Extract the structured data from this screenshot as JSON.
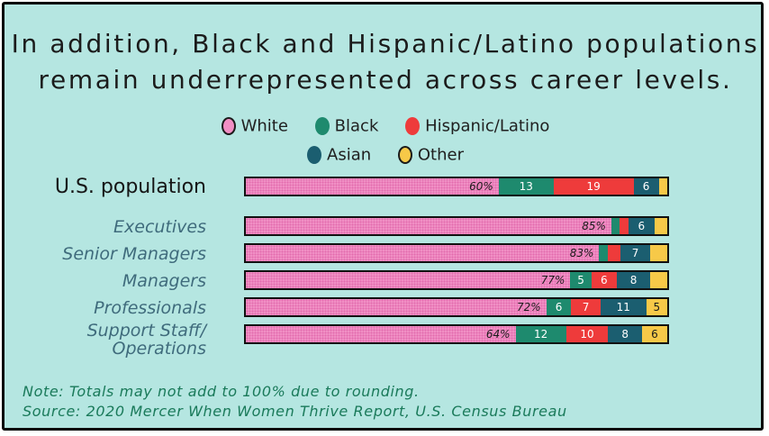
{
  "title_line1": "In addition, Black and Hispanic/Latino populations",
  "title_line2": "remain underrepresented across career levels.",
  "legend": [
    {
      "label": "White",
      "color": "#f08fc4"
    },
    {
      "label": "Black",
      "color": "#1e8a6e"
    },
    {
      "label": "Hispanic/Latino",
      "color": "#ee3b3b"
    },
    {
      "label": "Asian",
      "color": "#1b5e70"
    },
    {
      "label": "Other",
      "color": "#f7c948"
    }
  ],
  "chart_data": {
    "type": "bar",
    "orientation": "horizontal",
    "stacked": true,
    "categories": [
      "U.S. population",
      "Executives",
      "Senior Managers",
      "Managers",
      "Professionals",
      "Support Staff/ Operations"
    ],
    "series": [
      {
        "name": "White",
        "values": [
          60,
          85,
          83,
          77,
          72,
          64
        ],
        "labels": [
          "60%",
          "85%",
          "83%",
          "77%",
          "72%",
          "64%"
        ]
      },
      {
        "name": "Black",
        "values": [
          13,
          2,
          2,
          5,
          6,
          12
        ],
        "labels": [
          "13",
          "",
          "",
          "5",
          "6",
          "12"
        ]
      },
      {
        "name": "Hispanic/Latino",
        "values": [
          19,
          2,
          3,
          6,
          7,
          10
        ],
        "labels": [
          "19",
          "",
          "",
          "6",
          "7",
          "10"
        ]
      },
      {
        "name": "Asian",
        "values": [
          6,
          6,
          7,
          8,
          11,
          8
        ],
        "labels": [
          "6",
          "6",
          "7",
          "8",
          "11",
          "8"
        ]
      },
      {
        "name": "Other",
        "values": [
          2,
          3,
          4,
          4,
          5,
          6
        ],
        "labels": [
          "",
          "",
          "",
          "",
          "5",
          "6"
        ]
      }
    ],
    "title": "In addition, Black and Hispanic/Latino populations remain underrepresented across career levels."
  },
  "note": "Note: Totals may not add to 100% due to rounding.",
  "source": "Source: 2020 Mercer When Women Thrive Report, U.S. Census Bureau"
}
